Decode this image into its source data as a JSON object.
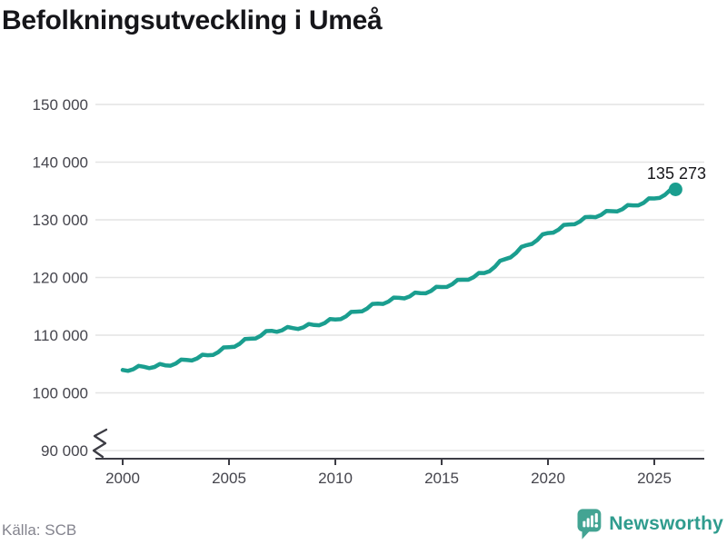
{
  "title": "Befolkningsutveckling i Umeå",
  "source": "Källa: SCB",
  "branding": {
    "name": "Newsworthy"
  },
  "colors": {
    "background": "#ffffff",
    "title_text": "#16161a",
    "line": "#1a9e8f",
    "grid": "#e4e4e4",
    "axis": "#3c3c44",
    "tick_text": "#45454d",
    "annotation_text": "#16161a",
    "source_text": "#84848e",
    "logo_icon": "#43a493",
    "logo_text": "#2f9c8e"
  },
  "chart_data": {
    "type": "line",
    "title": "Befolkningsutveckling i Umeå",
    "xlabel": "",
    "ylabel": "",
    "x_ticks": [
      2000,
      2005,
      2010,
      2015,
      2020,
      2025
    ],
    "x_tick_labels": [
      "2000",
      "2005",
      "2010",
      "2015",
      "2020",
      "2025"
    ],
    "y_ticks": [
      90000,
      100000,
      110000,
      120000,
      130000,
      140000,
      150000
    ],
    "y_tick_labels": [
      "90 000",
      "100 000",
      "110 000",
      "120 000",
      "130 000",
      "140 000",
      "150 000"
    ],
    "ylim": [
      90000,
      150000
    ],
    "xlim": [
      1998.7,
      2027.35
    ],
    "grid": "horizontal",
    "axis_break": true,
    "legend": "none",
    "latest_value": 135273,
    "latest_label": "135 273",
    "series": [
      {
        "name": "population",
        "points": [
          [
            2000.0,
            103970
          ],
          [
            2000.25,
            103806
          ],
          [
            2000.5,
            104091
          ],
          [
            2000.75,
            104677
          ],
          [
            2001.0,
            104512
          ],
          [
            2001.25,
            104277
          ],
          [
            2001.5,
            104491
          ],
          [
            2001.75,
            105006
          ],
          [
            2002.0,
            104770
          ],
          [
            2002.25,
            104703
          ],
          [
            2002.5,
            105085
          ],
          [
            2002.75,
            105768
          ],
          [
            2003.0,
            105700
          ],
          [
            2003.25,
            105606
          ],
          [
            2003.5,
            105963
          ],
          [
            2003.75,
            106619
          ],
          [
            2004.0,
            106525
          ],
          [
            2004.25,
            106573
          ],
          [
            2004.5,
            107071
          ],
          [
            2004.75,
            107869
          ],
          [
            2005.0,
            107917
          ],
          [
            2005.25,
            107985
          ],
          [
            2005.5,
            108504
          ],
          [
            2005.75,
            109322
          ],
          [
            2006.0,
            109390
          ],
          [
            2006.25,
            109432
          ],
          [
            2006.5,
            109924
          ],
          [
            2006.75,
            110716
          ],
          [
            2007.0,
            110758
          ],
          [
            2007.25,
            110577
          ],
          [
            2007.5,
            110847
          ],
          [
            2007.75,
            111416
          ],
          [
            2008.0,
            111235
          ],
          [
            2008.25,
            111069
          ],
          [
            2008.5,
            111353
          ],
          [
            2008.75,
            111937
          ],
          [
            2009.0,
            111771
          ],
          [
            2009.25,
            111710
          ],
          [
            2009.5,
            112100
          ],
          [
            2009.75,
            112789
          ],
          [
            2010.0,
            112728
          ],
          [
            2010.25,
            112765
          ],
          [
            2010.5,
            113252
          ],
          [
            2010.75,
            114038
          ],
          [
            2011.0,
            114075
          ],
          [
            2011.25,
            114125
          ],
          [
            2011.5,
            114624
          ],
          [
            2011.75,
            115424
          ],
          [
            2012.0,
            115473
          ],
          [
            2012.25,
            115421
          ],
          [
            2012.5,
            115819
          ],
          [
            2012.75,
            116517
          ],
          [
            2013.0,
            116465
          ],
          [
            2013.25,
            116372
          ],
          [
            2013.5,
            116730
          ],
          [
            2013.75,
            117387
          ],
          [
            2014.0,
            117294
          ],
          [
            2014.25,
            117258
          ],
          [
            2014.5,
            117672
          ],
          [
            2014.75,
            118385
          ],
          [
            2015.0,
            118349
          ],
          [
            2015.25,
            118365
          ],
          [
            2015.5,
            118831
          ],
          [
            2015.75,
            119597
          ],
          [
            2016.0,
            119613
          ],
          [
            2016.25,
            119604
          ],
          [
            2016.5,
            120045
          ],
          [
            2016.75,
            120786
          ],
          [
            2017.0,
            120777
          ],
          [
            2017.25,
            121083
          ],
          [
            2017.5,
            121839
          ],
          [
            2017.75,
            122894
          ],
          [
            2018.0,
            123200
          ],
          [
            2018.25,
            123500
          ],
          [
            2018.5,
            124250
          ],
          [
            2018.75,
            125300
          ],
          [
            2019.0,
            125600
          ],
          [
            2019.25,
            125825
          ],
          [
            2019.5,
            126500
          ],
          [
            2019.75,
            127475
          ],
          [
            2020.0,
            127700
          ],
          [
            2020.25,
            127775
          ],
          [
            2020.5,
            128300
          ],
          [
            2020.75,
            129125
          ],
          [
            2021.0,
            129200
          ],
          [
            2021.25,
            129225
          ],
          [
            2021.5,
            129700
          ],
          [
            2021.75,
            130475
          ],
          [
            2022.0,
            130500
          ],
          [
            2022.25,
            130450
          ],
          [
            2022.5,
            130850
          ],
          [
            2022.75,
            131550
          ],
          [
            2023.0,
            131500
          ],
          [
            2023.25,
            131450
          ],
          [
            2023.5,
            131850
          ],
          [
            2023.75,
            132550
          ],
          [
            2024.0,
            132500
          ],
          [
            2024.25,
            132500
          ],
          [
            2024.5,
            132950
          ],
          [
            2024.75,
            133720
          ],
          [
            2025.0,
            133700
          ],
          [
            2025.25,
            133793
          ],
          [
            2025.5,
            134337
          ],
          [
            2025.75,
            135180
          ],
          [
            2026.0,
            135273
          ]
        ]
      }
    ]
  }
}
